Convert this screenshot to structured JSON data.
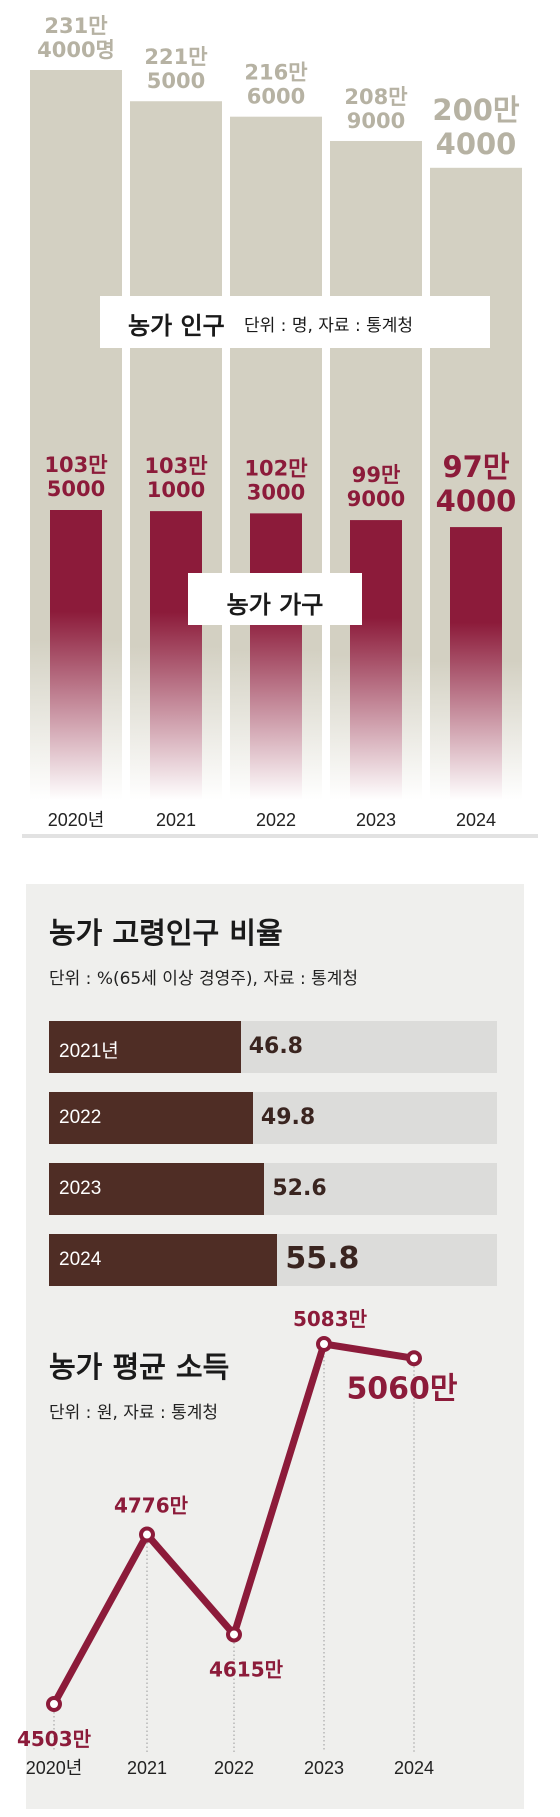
{
  "chart_data": [
    {
      "type": "bar",
      "title": "농가 인구",
      "subtitle": "단위 : 명, 자료 : 통계청",
      "secondary_title": "농가 가구",
      "categories": [
        "2020년",
        "2021",
        "2022",
        "2023",
        "2024"
      ],
      "series": [
        {
          "name": "농가 인구",
          "values": [
            2314000,
            2215000,
            2166000,
            2089000,
            2004000
          ],
          "labels": [
            [
              "231만",
              "4000명"
            ],
            [
              "221만",
              "5000"
            ],
            [
              "216만",
              "6000"
            ],
            [
              "208만",
              "9000"
            ],
            [
              "200만",
              "4000"
            ]
          ]
        },
        {
          "name": "농가 가구",
          "values": [
            1035000,
            1031000,
            1023000,
            999000,
            974000
          ],
          "labels": [
            [
              "103만",
              "5000"
            ],
            [
              "103만",
              "1000"
            ],
            [
              "102만",
              "3000"
            ],
            [
              "99만",
              "9000"
            ],
            [
              "97만",
              "4000"
            ]
          ]
        }
      ],
      "colors": {
        "population": "#d3d0c2",
        "population_label": "#b9b5a5",
        "household": "#8c1b3a"
      }
    },
    {
      "type": "bar",
      "orientation": "horizontal",
      "title": "농가 고령인구 비율",
      "subtitle": "단위 : %(65세 이상 경영주), 자료 : 통계청",
      "categories": [
        "2021년",
        "2022",
        "2023",
        "2024"
      ],
      "values": [
        46.8,
        49.8,
        52.6,
        55.8
      ],
      "value_labels": [
        "46.8",
        "49.8",
        "52.6",
        "55.8"
      ],
      "colors": {
        "bar": "#4f2d25",
        "track": "#dcdcda"
      }
    },
    {
      "type": "line",
      "title": "농가 평균 소득",
      "subtitle": "단위 : 원, 자료 : 통계청",
      "x": [
        "2020년",
        "2021",
        "2022",
        "2023",
        "2024"
      ],
      "values": [
        45030000,
        47760000,
        46150000,
        50830000,
        50600000
      ],
      "value_labels": [
        "4503만",
        "4776만",
        "4615만",
        "5083만",
        "5060만"
      ],
      "colors": {
        "line": "#8c1b3a"
      }
    }
  ]
}
